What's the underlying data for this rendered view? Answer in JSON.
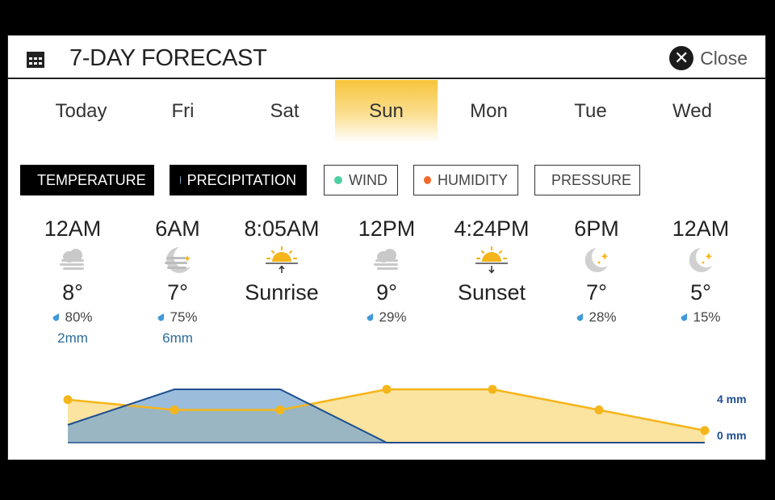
{
  "header": {
    "title": "7-DAY FORECAST",
    "close_label": "Close",
    "close_glyph": "✕"
  },
  "tabs": [
    {
      "label": "Today"
    },
    {
      "label": "Fri"
    },
    {
      "label": "Sat"
    },
    {
      "label": "Sun",
      "active": true
    },
    {
      "label": "Mon"
    },
    {
      "label": "Tue"
    },
    {
      "label": "Wed"
    }
  ],
  "metrics": [
    {
      "label": "TEMPERATURE",
      "active": true,
      "color": "#f5b51b"
    },
    {
      "label": "PRECIPITATION",
      "active": true,
      "color": "#8fb4d9"
    },
    {
      "label": "WIND",
      "active": false,
      "color": "#4ecfa5"
    },
    {
      "label": "HUMIDITY",
      "active": false,
      "color": "#f26b2b"
    },
    {
      "label": "PRESSURE",
      "active": false,
      "color": "#c94be2"
    }
  ],
  "slots": [
    {
      "time": "12AM",
      "icon": "fog-cloud-icon",
      "main": "8°",
      "humidity": "80%",
      "precip": "2mm"
    },
    {
      "time": "6AM",
      "icon": "night-fog-icon",
      "main": "7°",
      "humidity": "75%",
      "precip": "6mm"
    },
    {
      "time": "8:05AM",
      "icon": "sunrise-icon",
      "main": "Sunrise"
    },
    {
      "time": "12PM",
      "icon": "fog-cloud-icon",
      "main": "9°",
      "humidity": "29%"
    },
    {
      "time": "4:24PM",
      "icon": "sunset-icon",
      "main": "Sunset"
    },
    {
      "time": "6PM",
      "icon": "moon-stars-icon",
      "main": "7°",
      "humidity": "28%"
    },
    {
      "time": "12AM",
      "icon": "moon-stars-icon",
      "main": "5°",
      "humidity": "15%"
    }
  ],
  "chart_data": {
    "type": "area",
    "x": [
      "12AM",
      "6AM",
      "8:05AM",
      "12PM",
      "4:24PM",
      "6PM",
      "12AM"
    ],
    "series": [
      {
        "name": "TEMPERATURE",
        "values": [
          8,
          7,
          7,
          9,
          9,
          7,
          5
        ]
      },
      {
        "name": "PRECIPITATION",
        "values": [
          2,
          6,
          6,
          0,
          0,
          0,
          0
        ]
      }
    ],
    "y_labels": [
      "4 mm",
      "0 mm"
    ],
    "ylim_precip_mm": [
      0,
      4
    ]
  },
  "colors": {
    "temp_line": "#f5b51b",
    "temp_fill": "#fbe3a0",
    "precip_line": "#1e4f8f",
    "precip_fill": "#7aa7cf",
    "drop": "#3f9ad8"
  }
}
